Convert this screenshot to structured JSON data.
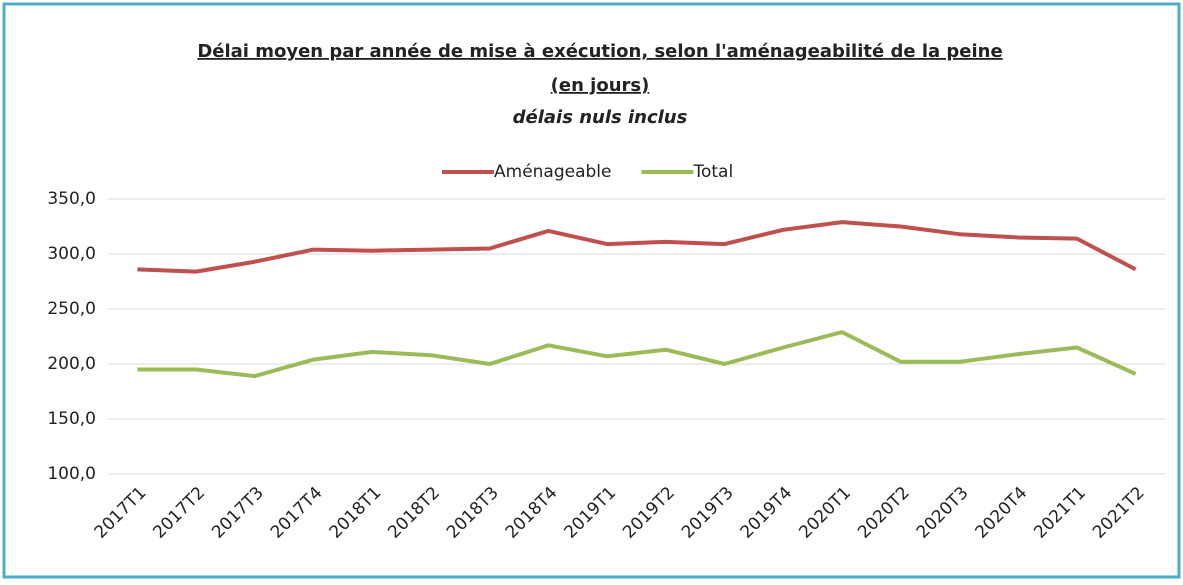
{
  "chart_data": {
    "type": "line",
    "title": [
      "Délai moyen par année de mise à exécution, selon l'aménageabilité de la peine",
      "(en jours)"
    ],
    "subtitle": "délais nuls inclus",
    "categories": [
      "2017T1",
      "2017T2",
      "2017T3",
      "2017T4",
      "2018T1",
      "2018T2",
      "2018T3",
      "2018T4",
      "2019T1",
      "2019T2",
      "2019T3",
      "2019T4",
      "2020T1",
      "2020T2",
      "2020T3",
      "2020T4",
      "2021T1",
      "2021T2"
    ],
    "series": [
      {
        "name": "Aménageable",
        "color": "#c0504d",
        "values": [
          286,
          284,
          293,
          304,
          303,
          304,
          305,
          321,
          309,
          311,
          309,
          322,
          329,
          325,
          318,
          315,
          314,
          286
        ]
      },
      {
        "name": "Total",
        "color": "#9bbb59",
        "values": [
          195,
          195,
          189,
          204,
          211,
          208,
          200,
          217,
          207,
          213,
          200,
          215,
          229,
          202,
          202,
          209,
          215,
          191
        ]
      }
    ],
    "ylim": [
      100,
      350
    ],
    "yticks": [
      {
        "value": 100,
        "label": "100,0"
      },
      {
        "value": 150,
        "label": "150,0"
      },
      {
        "value": 200,
        "label": "200,0"
      },
      {
        "value": 250,
        "label": "250,0"
      },
      {
        "value": 300,
        "label": "300,0"
      },
      {
        "value": 350,
        "label": "350,0"
      }
    ],
    "grid": true,
    "legend": "top"
  }
}
